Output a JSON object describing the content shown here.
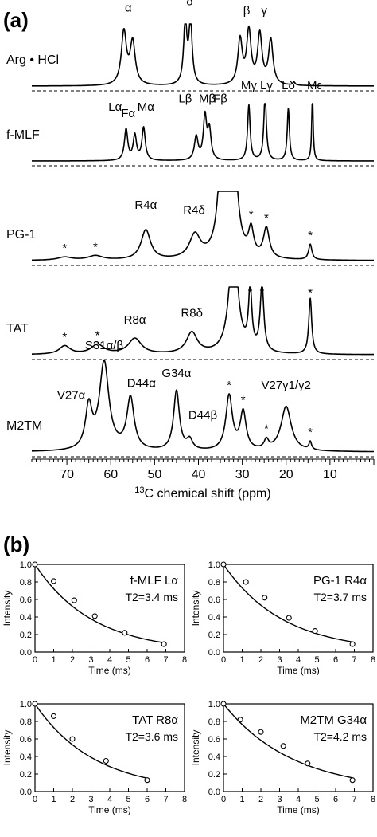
{
  "panel_a_label": "(a)",
  "panel_b_label": "(b)",
  "chart_data": [
    {
      "type": "line",
      "title": "",
      "xlabel_sup": "13",
      "xlabel": "C chemical shift (ppm)",
      "xlim": [
        78,
        0
      ],
      "xticks": [
        70,
        60,
        50,
        40,
        30,
        20,
        10
      ],
      "grid": false,
      "traces": [
        {
          "sample": "Arg • HCl",
          "peaks": [
            [
              57.0,
              0.85,
              0.7
            ],
            [
              55.0,
              0.68,
              0.7
            ],
            [
              43.0,
              1.0,
              0.45
            ],
            [
              41.8,
              1.0,
              0.45
            ],
            [
              30.5,
              0.72,
              0.6
            ],
            [
              28.5,
              0.85,
              0.6
            ],
            [
              26.0,
              0.8,
              0.6
            ],
            [
              23.5,
              0.72,
              0.6
            ],
            [
              18.2,
              0.05,
              0.3
            ]
          ],
          "labels": [
            {
              "text": "α",
              "x": 56,
              "y": 1.15
            },
            {
              "text": "δ",
              "x": 42,
              "y": 1.25
            },
            {
              "text": "β",
              "x": 29,
              "y": 1.1
            },
            {
              "text": "γ",
              "x": 25,
              "y": 1.1
            }
          ]
        },
        {
          "sample": "f-MLF",
          "peaks": [
            [
              56.5,
              0.48,
              0.45
            ],
            [
              54.5,
              0.38,
              0.45
            ],
            [
              52.5,
              0.5,
              0.45
            ],
            [
              40.5,
              0.36,
              0.5
            ],
            [
              38.5,
              0.66,
              0.45
            ],
            [
              37.5,
              0.45,
              0.45
            ],
            [
              28.5,
              0.85,
              0.35
            ],
            [
              24.8,
              1.0,
              0.35
            ],
            [
              19.5,
              0.8,
              0.3
            ],
            [
              14.0,
              1.0,
              0.2
            ]
          ],
          "labels": [
            {
              "text": "Lα",
              "x": 59,
              "y": 0.72
            },
            {
              "text": "Fα",
              "x": 56,
              "y": 0.62
            },
            {
              "text": "Mα",
              "x": 52,
              "y": 0.72
            },
            {
              "text": "Lβ",
              "x": 43,
              "y": 0.85
            },
            {
              "text": "Mβ",
              "x": 38,
              "y": 0.85
            },
            {
              "text": "Fβ",
              "x": 35,
              "y": 0.85
            },
            {
              "text": "Mγ",
              "x": 28.5,
              "y": 1.05
            },
            {
              "text": "Lγ",
              "x": 24.5,
              "y": 1.05
            },
            {
              "text": "Lδ",
              "x": 19.5,
              "y": 1.05
            },
            {
              "text": "Mε",
              "x": 13.5,
              "y": 1.05
            }
          ]
        },
        {
          "sample": "PG-1",
          "peaks": [
            [
              70.5,
              0.05,
              2.0
            ],
            [
              63.5,
              0.07,
              2.0
            ],
            [
              52.0,
              0.48,
              1.3
            ],
            [
              40.8,
              0.38,
              1.5
            ],
            [
              34.5,
              2.0,
              1.0
            ],
            [
              32.0,
              1.8,
              1.0
            ],
            [
              28.0,
              0.42,
              0.7
            ],
            [
              24.5,
              0.48,
              0.8
            ],
            [
              14.5,
              0.25,
              0.45
            ]
          ],
          "labels": [
            {
              "text": "R4α",
              "x": 52,
              "y": 0.78
            },
            {
              "text": "R4δ",
              "x": 41,
              "y": 0.7
            }
          ],
          "asterisks": [
            70.5,
            63.5,
            28.0,
            24.5,
            14.5
          ]
        },
        {
          "sample": "TAT",
          "peaks": [
            [
              70.5,
              0.15,
              1.5
            ],
            [
              63.0,
              0.17,
              1.8
            ],
            [
              54.5,
              0.28,
              1.8
            ],
            [
              41.5,
              0.38,
              1.5
            ],
            [
              32.0,
              2.2,
              1.1
            ],
            [
              28.2,
              1.1,
              0.45
            ],
            [
              25.5,
              1.2,
              0.5
            ],
            [
              14.5,
              1.0,
              0.4
            ]
          ],
          "labels": [
            {
              "text": "R8α",
              "x": 54.5,
              "y": 0.5
            },
            {
              "text": "R8δ",
              "x": 41.5,
              "y": 0.62
            }
          ],
          "asterisks": [
            70.5,
            63.0,
            28.2,
            25.5,
            14.5
          ]
        },
        {
          "sample": "M2TM",
          "peaks": [
            [
              65.0,
              0.42,
              0.9
            ],
            [
              61.5,
              0.88,
              1.3
            ],
            [
              55.5,
              0.52,
              1.0
            ],
            [
              45.0,
              0.6,
              0.8
            ],
            [
              42.0,
              0.1,
              0.8
            ],
            [
              33.0,
              0.55,
              0.9
            ],
            [
              29.8,
              0.38,
              0.8
            ],
            [
              24.5,
              0.09,
              0.6
            ],
            [
              20.0,
              0.45,
              1.4
            ],
            [
              14.5,
              0.08,
              0.35
            ]
          ],
          "labels": [
            {
              "text": "S31α/β",
              "x": 61.5,
              "y": 1.0
            },
            {
              "text": "V27α",
              "x": 69,
              "y": 0.5
            },
            {
              "text": "D44α",
              "x": 53,
              "y": 0.62
            },
            {
              "text": "G34α",
              "x": 45,
              "y": 0.72
            },
            {
              "text": "D44β",
              "x": 39,
              "y": 0.3
            },
            {
              "text": "V27γ1/γ2",
              "x": 20,
              "y": 0.6
            }
          ],
          "asterisks": [
            33.0,
            29.8,
            24.5,
            14.5
          ]
        }
      ]
    },
    {
      "type": "scatter",
      "title": "",
      "subplots": [
        {
          "sample": "f-MLF",
          "site": "Lα",
          "t2": "T2=3.4 ms",
          "x": [
            0,
            1.0,
            2.1,
            3.2,
            4.8,
            6.9
          ],
          "y": [
            1.0,
            0.81,
            0.59,
            0.41,
            0.22,
            0.09
          ],
          "xlabel": "Time (ms)",
          "ylabel": "Intensity",
          "xlim": [
            0,
            8
          ],
          "ylim": [
            0,
            1.0
          ],
          "xticks": [
            0,
            1,
            2,
            3,
            4,
            5,
            6,
            7,
            8
          ],
          "yticks": [
            0.0,
            0.2,
            0.4,
            0.6,
            0.8,
            1.0
          ],
          "fit_curve": true
        },
        {
          "sample": "PG-1",
          "site": "R4α",
          "t2": "T2=3.7 ms",
          "x": [
            0,
            1.2,
            2.2,
            3.5,
            4.9,
            6.9
          ],
          "y": [
            1.0,
            0.8,
            0.62,
            0.39,
            0.24,
            0.09
          ],
          "xlabel": "Time (ms)",
          "ylabel": "Intensity",
          "xlim": [
            0,
            8
          ],
          "ylim": [
            0,
            1.0
          ],
          "xticks": [
            0,
            1,
            2,
            3,
            4,
            5,
            6,
            7,
            8
          ],
          "yticks": [
            0.0,
            0.2,
            0.4,
            0.6,
            0.8,
            1.0
          ],
          "fit_curve": true
        },
        {
          "sample": "TAT",
          "site": "R8α",
          "t2": "T2=3.6 ms",
          "x": [
            0,
            1.0,
            2.0,
            3.8,
            6.0
          ],
          "y": [
            1.0,
            0.86,
            0.6,
            0.35,
            0.13
          ],
          "xlabel": "Time (ms)",
          "ylabel": "Intensity",
          "xlim": [
            0,
            8
          ],
          "ylim": [
            0,
            1.0
          ],
          "xticks": [
            0,
            1,
            2,
            3,
            4,
            5,
            6,
            7,
            8
          ],
          "yticks": [
            0.0,
            0.2,
            0.4,
            0.6,
            0.8,
            1.0
          ],
          "fit_curve": true
        },
        {
          "sample": "M2TM",
          "site": "G34α",
          "t2": "T2=4.2 ms",
          "x": [
            0,
            0.9,
            2.0,
            3.2,
            4.5,
            6.9
          ],
          "y": [
            1.0,
            0.82,
            0.68,
            0.52,
            0.32,
            0.13
          ],
          "xlabel": "Time (ms)",
          "ylabel": "Intensity",
          "xlim": [
            0,
            8
          ],
          "ylim": [
            0,
            1.0
          ],
          "xticks": [
            0,
            1,
            2,
            3,
            4,
            5,
            6,
            7,
            8
          ],
          "yticks": [
            0.0,
            0.2,
            0.4,
            0.6,
            0.8,
            1.0
          ],
          "fit_curve": true
        }
      ]
    }
  ]
}
